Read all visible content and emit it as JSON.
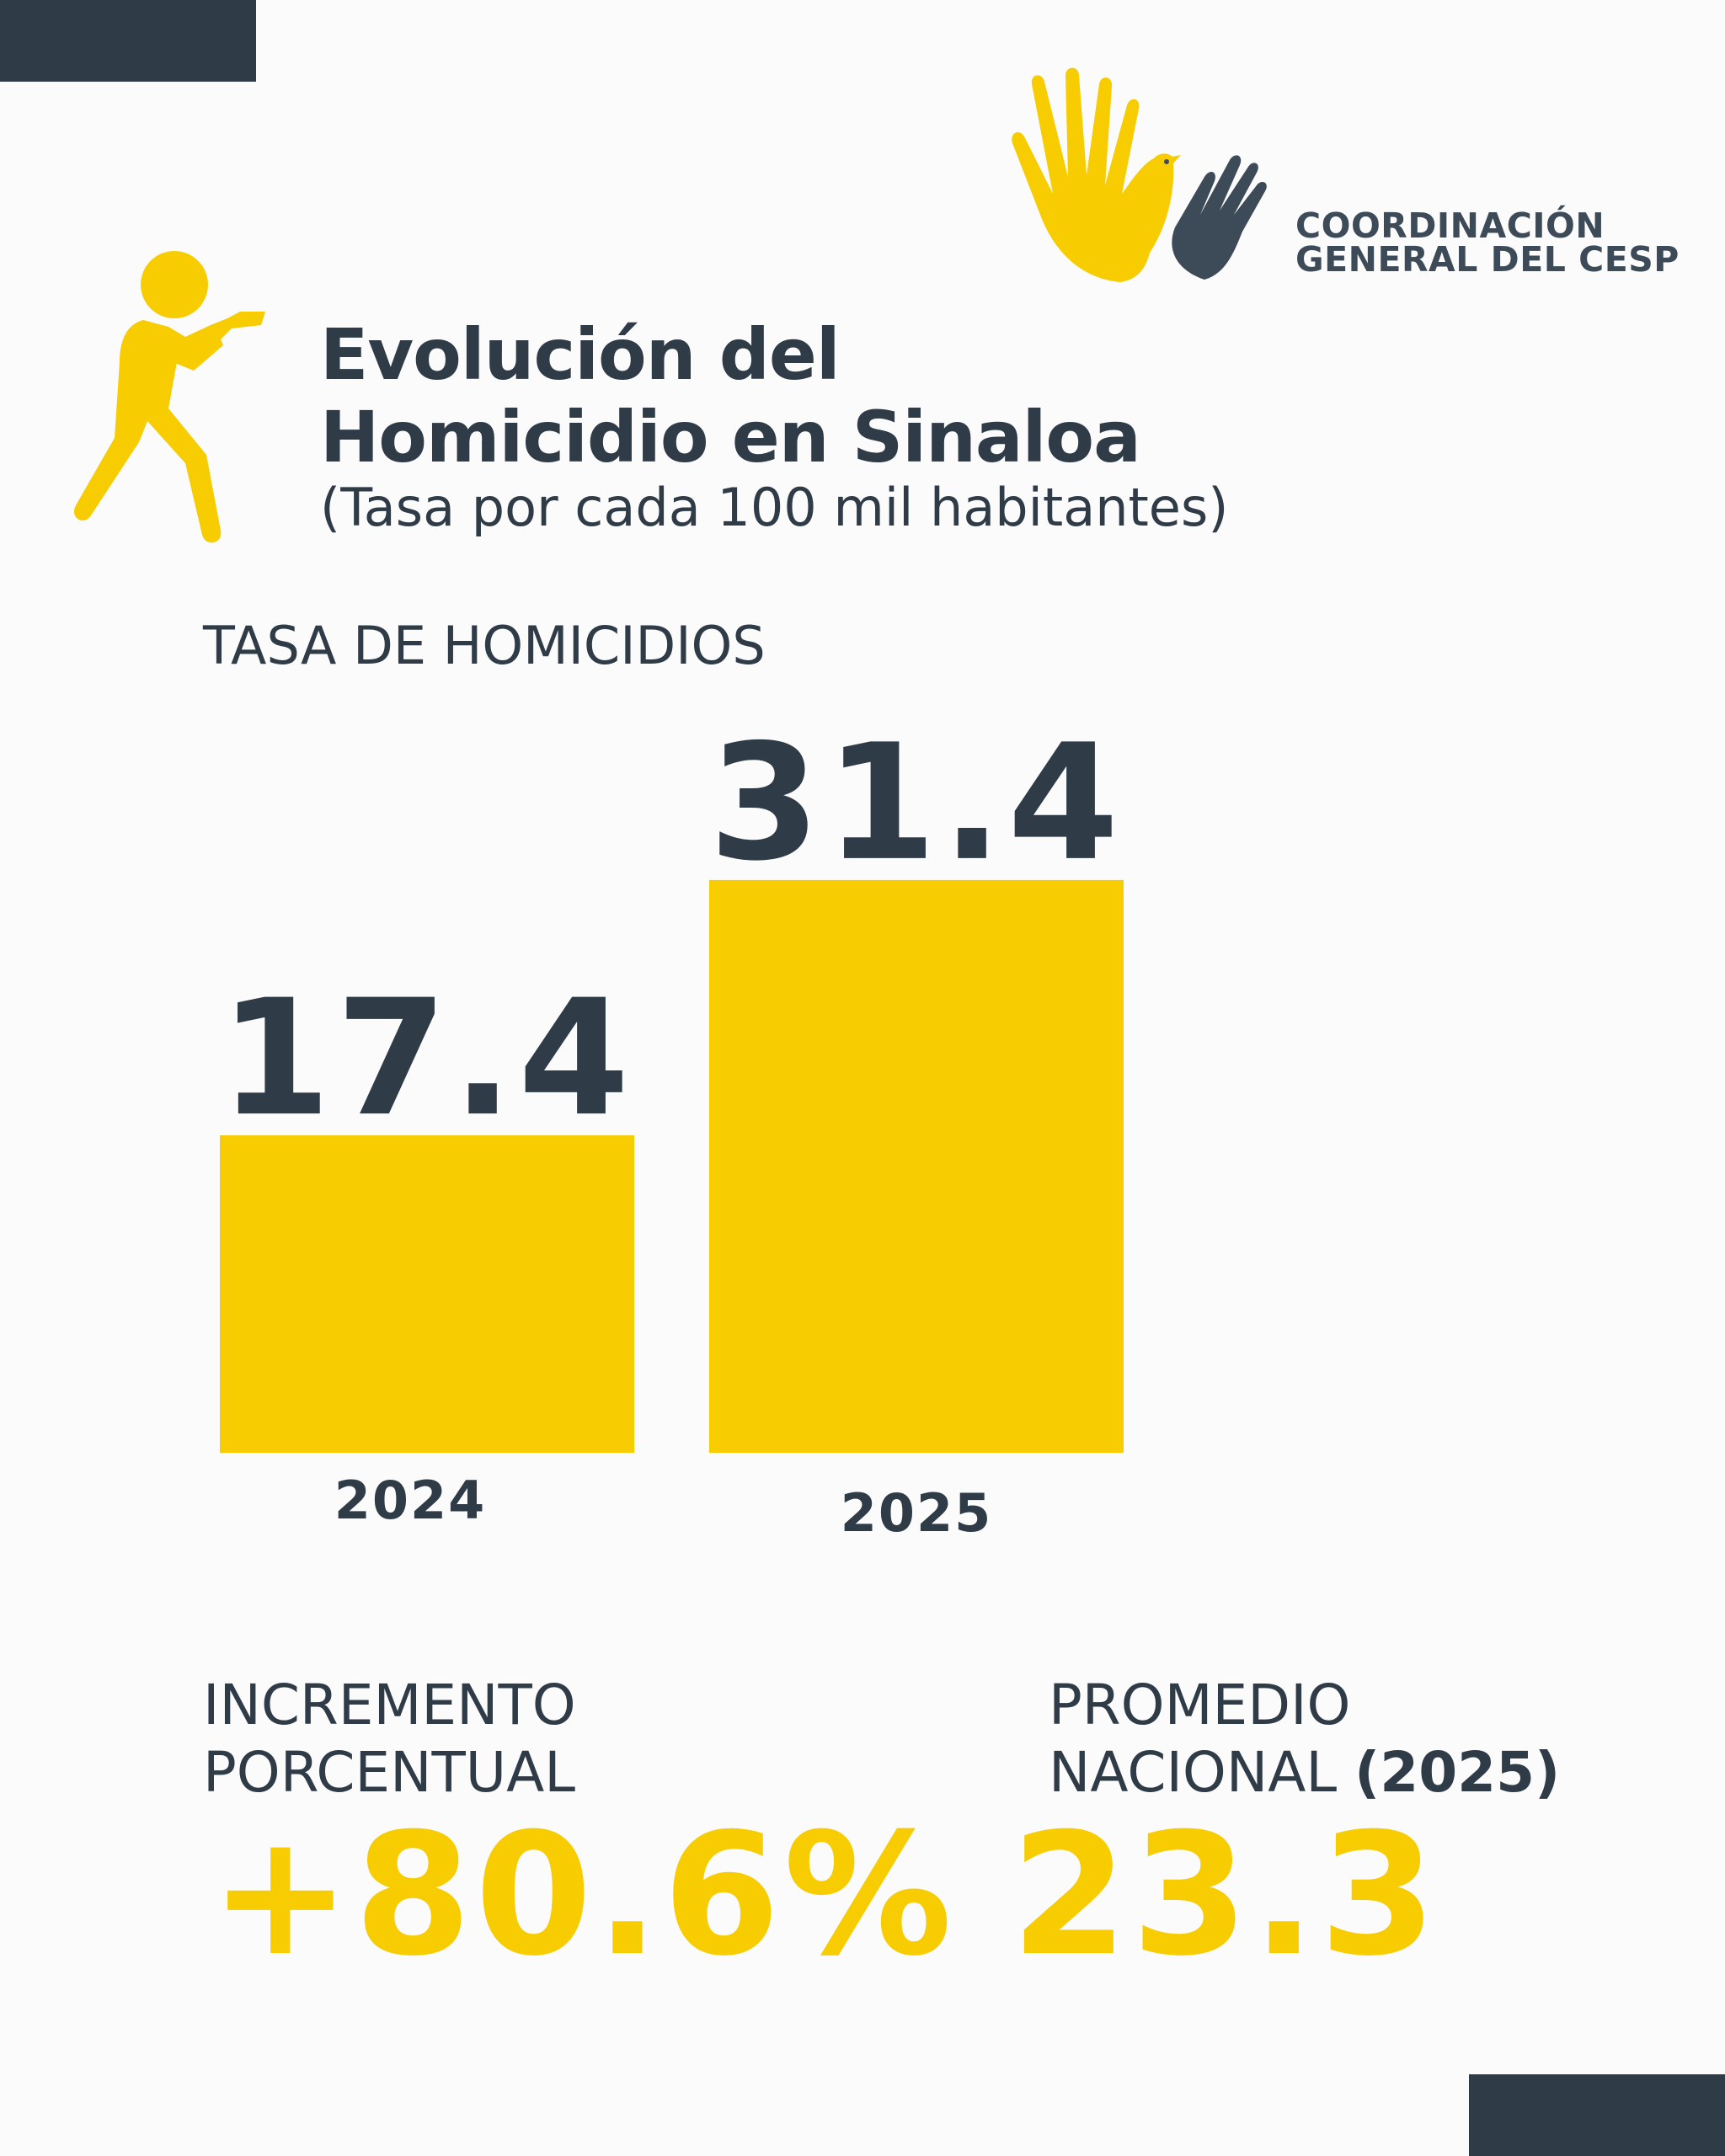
{
  "logo": {
    "line1": "COORDINACIÓN",
    "line2": "GENERAL DEL CESP",
    "icon": "hands-dove-icon"
  },
  "header": {
    "icon": "shooter-icon",
    "title_line1": "Evolución del",
    "title_line2": "Homicidio en Sinaloa",
    "subtitle": "(Tasa por cada 100 mil habitantes)"
  },
  "chart_label": "TASA DE HOMICIDIOS",
  "chart_data": {
    "type": "bar",
    "title": "TASA DE HOMICIDIOS",
    "categories": [
      "2024",
      "2025"
    ],
    "values": [
      17.4,
      31.4
    ],
    "value_labels": [
      "17.4",
      "31.4"
    ],
    "xlabel": "",
    "ylabel": "",
    "bar_color": "#f7cc00",
    "grid": false
  },
  "stats": {
    "increment_label_1": "INCREMENTO",
    "increment_label_2": "PORCENTUAL",
    "increment_value": "+80.6%",
    "national_label_1": "PROMEDIO",
    "national_label_2": "NACIONAL",
    "national_label_year": "(2025)",
    "national_value": "23.3"
  },
  "colors": {
    "accent": "#f7cc00",
    "dark": "#2f3c47",
    "background": "#fbfbfb"
  }
}
